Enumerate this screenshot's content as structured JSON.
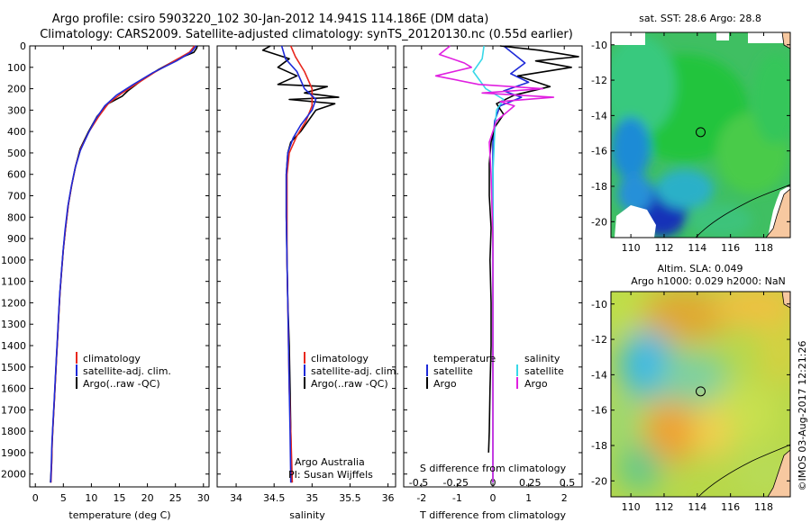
{
  "header": {
    "line1": "Argo profile: csiro 5903220_102 30-Jan-2012 14.941S 114.186E (DM data)",
    "line2": "Climatology: CARS2009. Satellite-adjusted climatology: synTS_20120130.nc (0.55d earlier)"
  },
  "side_stamp": "©IMOS 03-Aug-2017 12:21:26",
  "colors": {
    "climatology": "#e8281e",
    "satellite": "#1e2ad8",
    "argo": "#000000",
    "sal_satellite": "#38d8e8",
    "sal_argo": "#e020e0"
  },
  "chart_data": [
    {
      "type": "line",
      "name": "temperature",
      "xlabel": "temperature (deg C)",
      "xlim": [
        -1,
        31
      ],
      "xticks": [
        0,
        5,
        10,
        15,
        20,
        25,
        30
      ],
      "ylim": [
        0,
        2060
      ],
      "yticks": [
        0,
        100,
        200,
        300,
        400,
        500,
        600,
        700,
        800,
        900,
        1000,
        1100,
        1200,
        1300,
        1400,
        1500,
        1600,
        1700,
        1800,
        1900,
        2000
      ],
      "legend": [
        "climatology",
        "satellite-adj. clim.",
        "Argo(..raw -QC)"
      ],
      "series": [
        {
          "name": "Argo(..raw -QC)",
          "color": "#000000",
          "points": [
            [
              28.9,
              0
            ],
            [
              28.8,
              10
            ],
            [
              28.3,
              30
            ],
            [
              25.5,
              60
            ],
            [
              22,
              110
            ],
            [
              19,
              160
            ],
            [
              16.5,
              210
            ],
            [
              15.5,
              235
            ],
            [
              13,
              270
            ],
            [
              11,
              330
            ],
            [
              9.5,
              400
            ],
            [
              8,
              480
            ],
            [
              7.2,
              560
            ],
            [
              6.5,
              650
            ],
            [
              5.9,
              740
            ],
            [
              5.4,
              850
            ],
            [
              5,
              950
            ],
            [
              4.7,
              1050
            ],
            [
              4.4,
              1150
            ],
            [
              4.2,
              1250
            ],
            [
              4,
              1350
            ],
            [
              3.8,
              1450
            ],
            [
              3.6,
              1550
            ],
            [
              3.4,
              1650
            ],
            [
              3.2,
              1750
            ],
            [
              3,
              1850
            ],
            [
              2.9,
              1950
            ],
            [
              2.7,
              2040
            ]
          ]
        },
        {
          "name": "climatology",
          "color": "#e8281e",
          "points": [
            [
              28.4,
              0
            ],
            [
              27.5,
              30
            ],
            [
              24.8,
              70
            ],
            [
              21.5,
              120
            ],
            [
              18.5,
              170
            ],
            [
              15.5,
              220
            ],
            [
              13,
              270
            ],
            [
              11.3,
              330
            ],
            [
              9.6,
              400
            ],
            [
              8.1,
              480
            ],
            [
              7.2,
              560
            ],
            [
              6.5,
              650
            ],
            [
              5.9,
              740
            ],
            [
              5.4,
              850
            ],
            [
              5,
              950
            ],
            [
              4.7,
              1050
            ],
            [
              4.4,
              1150
            ],
            [
              4.2,
              1250
            ],
            [
              4,
              1350
            ],
            [
              3.8,
              1450
            ],
            [
              3.6,
              1550
            ],
            [
              3.4,
              1650
            ],
            [
              3.2,
              1750
            ],
            [
              3,
              1850
            ],
            [
              2.9,
              1950
            ],
            [
              2.8,
              2040
            ]
          ]
        },
        {
          "name": "satellite-adj. clim.",
          "color": "#1e2ad8",
          "points": [
            [
              28.7,
              0
            ],
            [
              27.8,
              30
            ],
            [
              25.2,
              70
            ],
            [
              21,
              125
            ],
            [
              17.5,
              180
            ],
            [
              14.5,
              230
            ],
            [
              12.4,
              280
            ],
            [
              10.8,
              340
            ],
            [
              9.4,
              410
            ],
            [
              8,
              490
            ],
            [
              7.1,
              570
            ],
            [
              6.4,
              660
            ],
            [
              5.8,
              750
            ],
            [
              5.3,
              860
            ],
            [
              4.95,
              960
            ],
            [
              4.65,
              1060
            ],
            [
              4.35,
              1160
            ],
            [
              4.15,
              1260
            ],
            [
              3.95,
              1360
            ],
            [
              3.75,
              1460
            ],
            [
              3.55,
              1560
            ],
            [
              3.35,
              1660
            ],
            [
              3.15,
              1760
            ],
            [
              2.95,
              1860
            ],
            [
              2.85,
              1960
            ],
            [
              2.75,
              2040
            ]
          ]
        }
      ]
    },
    {
      "type": "line",
      "name": "salinity",
      "xlabel": "salinity",
      "xlim": [
        33.75,
        36.1
      ],
      "xticks": [
        34,
        34.5,
        35,
        35.5,
        36
      ],
      "xtick_labels": [
        "34",
        "34.5",
        "35",
        "35.5",
        "36"
      ],
      "ylim": [
        0,
        2060
      ],
      "legend": [
        "climatology",
        "satellite-adj. clim.",
        "Argo(..raw -QC)"
      ],
      "annotation": [
        "Argo Australia",
        "PI: Susan Wijffels"
      ],
      "series": [
        {
          "name": "Argo(..raw -QC)",
          "color": "#000000",
          "points": [
            [
              34.45,
              0
            ],
            [
              34.35,
              20
            ],
            [
              34.7,
              60
            ],
            [
              34.55,
              100
            ],
            [
              34.8,
              140
            ],
            [
              34.55,
              180
            ],
            [
              35.2,
              190
            ],
            [
              34.9,
              220
            ],
            [
              35.35,
              240
            ],
            [
              34.7,
              250
            ],
            [
              35.3,
              270
            ],
            [
              35.05,
              300
            ],
            [
              34.95,
              350
            ],
            [
              34.85,
              400
            ],
            [
              34.72,
              450
            ],
            [
              34.68,
              500
            ],
            [
              34.66,
              600
            ],
            [
              34.66,
              800
            ],
            [
              34.67,
              1000
            ],
            [
              34.68,
              1200
            ],
            [
              34.7,
              1400
            ],
            [
              34.71,
              1600
            ],
            [
              34.72,
              1800
            ],
            [
              34.73,
              2040
            ]
          ]
        },
        {
          "name": "climatology",
          "color": "#e8281e",
          "points": [
            [
              34.72,
              0
            ],
            [
              34.78,
              50
            ],
            [
              34.9,
              120
            ],
            [
              35.0,
              200
            ],
            [
              35.0,
              280
            ],
            [
              34.92,
              350
            ],
            [
              34.8,
              420
            ],
            [
              34.7,
              500
            ],
            [
              34.67,
              600
            ],
            [
              34.67,
              800
            ],
            [
              34.67,
              1000
            ],
            [
              34.68,
              1200
            ],
            [
              34.69,
              1400
            ],
            [
              34.7,
              1600
            ],
            [
              34.72,
              1800
            ],
            [
              34.74,
              2040
            ]
          ]
        },
        {
          "name": "satellite-adj. clim.",
          "color": "#1e2ad8",
          "points": [
            [
              34.6,
              0
            ],
            [
              34.65,
              60
            ],
            [
              34.8,
              120
            ],
            [
              34.9,
              200
            ],
            [
              35.05,
              250
            ],
            [
              35.0,
              300
            ],
            [
              34.85,
              370
            ],
            [
              34.75,
              430
            ],
            [
              34.68,
              500
            ],
            [
              34.66,
              600
            ],
            [
              34.66,
              800
            ],
            [
              34.67,
              1000
            ],
            [
              34.68,
              1200
            ],
            [
              34.69,
              1400
            ],
            [
              34.7,
              1600
            ],
            [
              34.71,
              1800
            ],
            [
              34.72,
              2040
            ]
          ]
        }
      ]
    },
    {
      "type": "line",
      "name": "difference from climatology",
      "xlabel": "T difference from climatology",
      "xlabel_top": "S difference from climatology",
      "xlim": [
        -2.5,
        2.5
      ],
      "xticks": [
        -2,
        -1,
        0,
        1,
        2
      ],
      "xticks_s": [
        -0.5,
        -0.25,
        0,
        0.25,
        0.5
      ],
      "xtick_labels_s": [
        "-0.5",
        "-0.25",
        "0",
        "0.25",
        "0.5"
      ],
      "ylim": [
        0,
        2060
      ],
      "legend": {
        "temperature": [
          "satellite",
          "Argo"
        ],
        "salinity": [
          "satellite",
          "Argo"
        ],
        "temperature_title": "temperature",
        "salinity_title": "salinity"
      },
      "series": [
        {
          "name": "temperature satellite",
          "color": "#1e2ad8",
          "points": [
            [
              0.3,
              0
            ],
            [
              0.6,
              40
            ],
            [
              0.9,
              80
            ],
            [
              0.5,
              130
            ],
            [
              1.0,
              170
            ],
            [
              0.3,
              210
            ],
            [
              0.8,
              240
            ],
            [
              0.2,
              280
            ],
            [
              0.05,
              350
            ],
            [
              0,
              450
            ],
            [
              0,
              700
            ],
            [
              0,
              1000
            ],
            [
              0,
              1500
            ],
            [
              0,
              2040
            ]
          ]
        },
        {
          "name": "temperature Argo",
          "color": "#000000",
          "points": [
            [
              0.2,
              0
            ],
            [
              1.3,
              20
            ],
            [
              2.4,
              50
            ],
            [
              1.2,
              70
            ],
            [
              2.2,
              100
            ],
            [
              0.7,
              140
            ],
            [
              1.6,
              190
            ],
            [
              0.6,
              230
            ],
            [
              0.1,
              270
            ],
            [
              0.3,
              320
            ],
            [
              0.05,
              380
            ],
            [
              -0.05,
              450
            ],
            [
              -0.1,
              550
            ],
            [
              -0.1,
              700
            ],
            [
              -0.05,
              850
            ],
            [
              -0.08,
              1000
            ],
            [
              -0.05,
              1200
            ],
            [
              -0.05,
              1400
            ],
            [
              -0.08,
              1600
            ],
            [
              -0.1,
              1800
            ],
            [
              -0.12,
              1900
            ]
          ]
        },
        {
          "name": "salinity satellite",
          "color": "#38d8e8",
          "points": [
            [
              -0.25,
              0
            ],
            [
              -0.3,
              60
            ],
            [
              -0.55,
              120
            ],
            [
              -0.2,
              200
            ],
            [
              0.3,
              250
            ],
            [
              0.1,
              300
            ],
            [
              0.05,
              400
            ],
            [
              0,
              600
            ],
            [
              0,
              900
            ],
            [
              0,
              1200
            ],
            [
              0,
              1600
            ],
            [
              0,
              2040
            ]
          ]
        },
        {
          "name": "salinity Argo",
          "color": "#e020e0",
          "points": [
            [
              -1.2,
              0
            ],
            [
              -1.5,
              40
            ],
            [
              -0.8,
              80
            ],
            [
              -0.6,
              100
            ],
            [
              -1.6,
              140
            ],
            [
              -0.4,
              180
            ],
            [
              1.4,
              200
            ],
            [
              -0.3,
              220
            ],
            [
              1.7,
              240
            ],
            [
              0.2,
              260
            ],
            [
              0.6,
              280
            ],
            [
              0.1,
              350
            ],
            [
              -0.1,
              450
            ],
            [
              -0.05,
              600
            ],
            [
              0,
              900
            ],
            [
              0,
              1400
            ],
            [
              0,
              2040
            ]
          ]
        }
      ]
    },
    {
      "type": "heatmap",
      "name": "sst_map",
      "title": "sat. SST: 28.6 Argo: 28.8",
      "xticks": [
        110,
        112,
        114,
        116,
        118
      ],
      "yticks": [
        -10,
        -12,
        -14,
        -16,
        -18,
        -20
      ],
      "xlim": [
        108.8,
        119.6
      ],
      "ylim": [
        -20.9,
        -9.3
      ],
      "marker": [
        114.2,
        -14.94
      ]
    },
    {
      "type": "heatmap",
      "name": "sla_map",
      "title_line1": "Altim. SLA: 0.049",
      "title_line2": "Argo h1000: 0.029 h2000: NaN",
      "xticks": [
        110,
        112,
        114,
        116,
        118
      ],
      "yticks": [
        -10,
        -12,
        -14,
        -16,
        -18,
        -20
      ],
      "xlim": [
        108.8,
        119.6
      ],
      "ylim": [
        -20.9,
        -9.3
      ],
      "marker": [
        114.2,
        -14.94
      ]
    }
  ]
}
